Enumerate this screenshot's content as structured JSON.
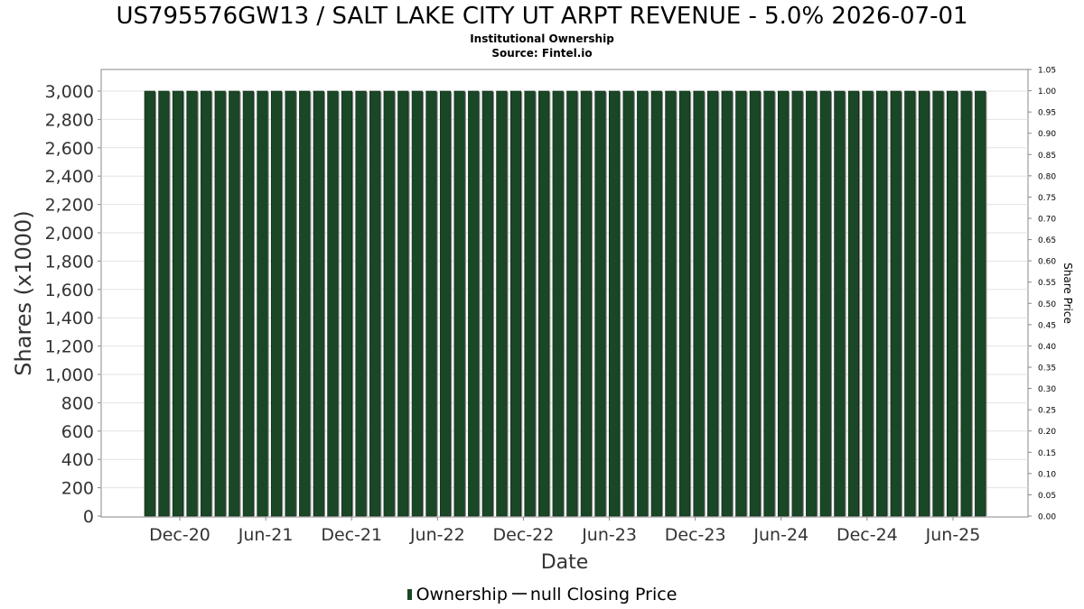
{
  "chart_data": {
    "type": "bar",
    "title": "US795576GW13 / SALT LAKE CITY UT ARPT REVENUE - 5.0% 2026-07-01",
    "subtitle": "Institutional Ownership",
    "source": "Source: Fintel.io",
    "xlabel": "Date",
    "ylabel": "Shares (x1000)",
    "ylabel_right": "Share Price",
    "ylim": [
      0,
      3000
    ],
    "ylim_right": [
      0,
      1.05
    ],
    "y_ticks": [
      "0",
      "200",
      "400",
      "600",
      "800",
      "1,000",
      "1,200",
      "1,400",
      "1,600",
      "1,800",
      "2,000",
      "2,200",
      "2,400",
      "2,600",
      "2,800",
      "3,000"
    ],
    "y_ticks_right": [
      "0.00",
      "0.05",
      "0.10",
      "0.15",
      "0.20",
      "0.25",
      "0.30",
      "0.35",
      "0.40",
      "0.45",
      "0.50",
      "0.55",
      "0.60",
      "0.65",
      "0.70",
      "0.75",
      "0.80",
      "0.85",
      "0.90",
      "0.95",
      "1.00",
      "1.05"
    ],
    "x_ticks": [
      "Dec-20",
      "Jun-21",
      "Dec-21",
      "Jun-22",
      "Dec-22",
      "Jun-23",
      "Dec-23",
      "Jun-24",
      "Dec-24",
      "Jun-25"
    ],
    "series": [
      {
        "name": "Ownership",
        "color": "#1a4726",
        "values": [
          3000,
          3000,
          3000,
          3000,
          3000,
          3000,
          3000,
          3000,
          3000,
          3000,
          3000,
          3000,
          3000,
          3000,
          3000,
          3000,
          3000,
          3000,
          3000,
          3000,
          3000,
          3000,
          3000,
          3000,
          3000,
          3000,
          3000,
          3000,
          3000,
          3000,
          3000,
          3000,
          3000,
          3000,
          3000,
          3000,
          3000,
          3000,
          3000,
          3000,
          3000,
          3000,
          3000,
          3000,
          3000,
          3000,
          3000,
          3000,
          3000,
          3000,
          3000,
          3000,
          3000,
          3000,
          3000,
          3000,
          3000,
          3000,
          3000,
          3000
        ]
      }
    ],
    "legend": [
      "Ownership",
      "null Closing Price"
    ],
    "grid": true
  }
}
